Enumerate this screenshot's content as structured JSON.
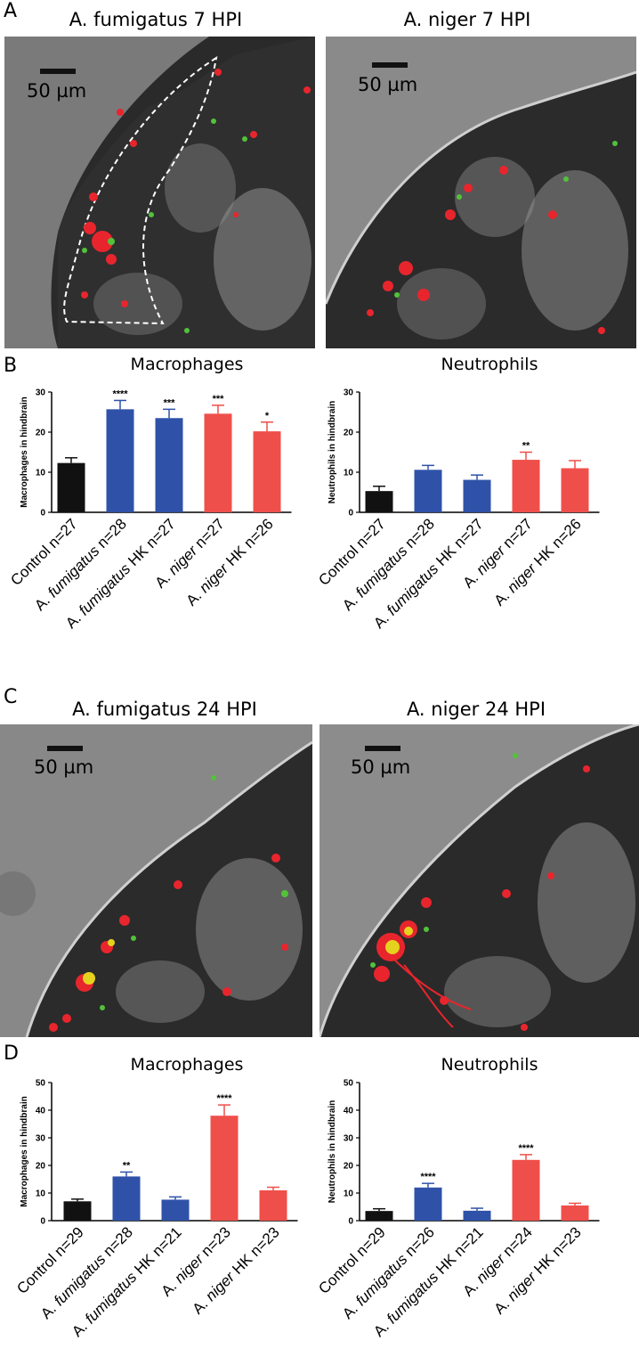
{
  "panels": {
    "A": {
      "letter": "A",
      "left_title": "A. fumigatus 7 HPI",
      "right_title": "A. niger 7 HPI",
      "scale_label": "50 µm"
    },
    "B": {
      "letter": "B"
    },
    "C": {
      "letter": "C",
      "left_title": "A. fumigatus 24 HPI",
      "right_title": "A. niger 24 HPI",
      "scale_label": "50 µm"
    },
    "D": {
      "letter": "D"
    }
  },
  "colors": {
    "control": "#111111",
    "fumigatus": "#2f52a8",
    "niger": "#ef4f4a"
  },
  "chart_data": [
    {
      "panel": "B",
      "type": "bar",
      "title": "Macrophages",
      "ylabel": "Macrophages in hindbrain",
      "ylim": [
        0,
        30
      ],
      "yticks": [
        0,
        10,
        20,
        30
      ],
      "categories": [
        {
          "italic": "",
          "pre": "Control n=27",
          "post": ""
        },
        {
          "pre": "A. ",
          "italic": "fumigatus",
          "post": " n=28"
        },
        {
          "pre": "A. ",
          "italic": "fumigatus",
          "post": " HK n=27"
        },
        {
          "pre": "A. ",
          "italic": "niger",
          "post": " n=27"
        },
        {
          "pre": "A. ",
          "italic": "niger",
          "post": " HK n=26"
        }
      ],
      "values": [
        12.3,
        25.7,
        23.5,
        24.6,
        20.2
      ],
      "errors": [
        1.3,
        2.2,
        2.2,
        2.1,
        2.3
      ],
      "significance": [
        "",
        "****",
        "***",
        "***",
        "*"
      ],
      "bar_colors": [
        "control",
        "fumigatus",
        "fumigatus",
        "niger",
        "niger"
      ]
    },
    {
      "panel": "B",
      "type": "bar",
      "title": "Neutrophils",
      "ylabel": "Neutrophils in hindbrain",
      "ylim": [
        0,
        30
      ],
      "yticks": [
        0,
        10,
        20,
        30
      ],
      "categories": [
        {
          "italic": "",
          "pre": "Control n=27",
          "post": ""
        },
        {
          "pre": "A. ",
          "italic": "fumigatus",
          "post": " n=28"
        },
        {
          "pre": "A. ",
          "italic": "fumigatus",
          "post": " HK n=27"
        },
        {
          "pre": "A. ",
          "italic": "niger",
          "post": " n=27"
        },
        {
          "pre": "A. ",
          "italic": "niger",
          "post": " HK n=26"
        }
      ],
      "values": [
        5.3,
        10.6,
        8.1,
        13.1,
        11.0
      ],
      "errors": [
        1.2,
        1.1,
        1.2,
        1.9,
        1.9
      ],
      "significance": [
        "",
        "",
        "",
        "**",
        ""
      ],
      "bar_colors": [
        "control",
        "fumigatus",
        "fumigatus",
        "niger",
        "niger"
      ]
    },
    {
      "panel": "D",
      "type": "bar",
      "title": "Macrophages",
      "ylabel": "Macrophages in hindbrain",
      "ylim": [
        0,
        50
      ],
      "yticks": [
        0,
        10,
        20,
        30,
        40,
        50
      ],
      "categories": [
        {
          "italic": "",
          "pre": "Control n=29",
          "post": ""
        },
        {
          "pre": "A. ",
          "italic": "fumigatus",
          "post": " n=28"
        },
        {
          "pre": "A. ",
          "italic": "fumigatus",
          "post": " HK n=21"
        },
        {
          "pre": "A. ",
          "italic": "niger",
          "post": " n=23"
        },
        {
          "pre": "A. ",
          "italic": "niger",
          "post": " HK n=23"
        }
      ],
      "values": [
        7.0,
        16.0,
        7.6,
        38.0,
        11.0
      ],
      "errors": [
        0.8,
        1.6,
        1.0,
        3.9,
        1.1
      ],
      "significance": [
        "",
        "**",
        "",
        "****",
        ""
      ],
      "bar_colors": [
        "control",
        "fumigatus",
        "fumigatus",
        "niger",
        "niger"
      ]
    },
    {
      "panel": "D",
      "type": "bar",
      "title": "Neutrophils",
      "ylabel": "Neutrophils in hindbrain",
      "ylim": [
        0,
        50
      ],
      "yticks": [
        0,
        10,
        20,
        30,
        40,
        50
      ],
      "categories": [
        {
          "italic": "",
          "pre": "Control n=29",
          "post": ""
        },
        {
          "pre": "A. ",
          "italic": "fumigatus",
          "post": " n=26"
        },
        {
          "pre": "A. ",
          "italic": "fumigatus",
          "post": " HK n=21"
        },
        {
          "pre": "A. ",
          "italic": "niger",
          "post": " n=24"
        },
        {
          "pre": "A. ",
          "italic": "niger",
          "post": " HK n=23"
        }
      ],
      "values": [
        3.5,
        12.0,
        3.6,
        22.0,
        5.5
      ],
      "errors": [
        0.8,
        1.5,
        0.9,
        1.9,
        0.8
      ],
      "significance": [
        "",
        "****",
        "",
        "****",
        ""
      ],
      "bar_colors": [
        "control",
        "fumigatus",
        "fumigatus",
        "niger",
        "niger"
      ]
    }
  ]
}
